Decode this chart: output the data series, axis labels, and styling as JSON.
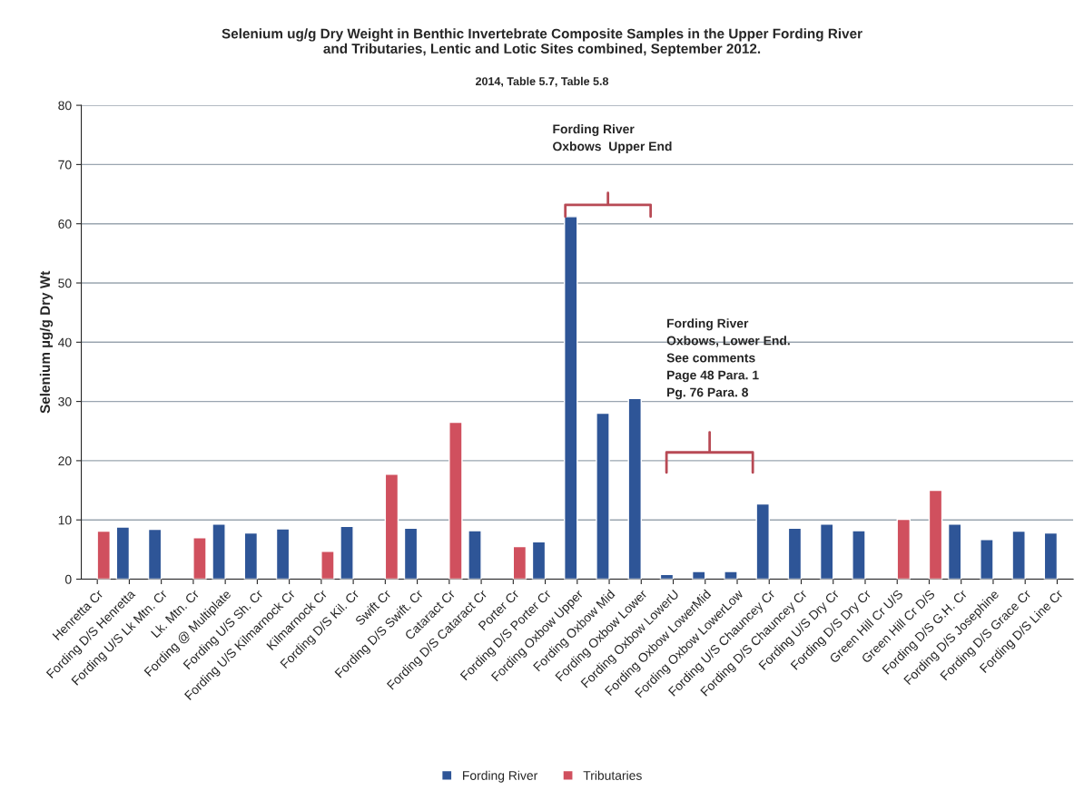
{
  "chart_data": {
    "type": "bar",
    "title": "Selenium ug/g Dry Weight in Benthic Invertebrate Composite Samples in the Upper Fording River\nand Tributaries, Lentic and Lotic Sites combined, September 2012.",
    "subtitle": "2014, Table 5.7, Table 5.8",
    "ylabel": "Selenium µg/g Dry Wt",
    "categories": [
      "Henretta Cr",
      "Fording D/S Henretta",
      "Fording U/S Lk Mtn. Cr",
      "Lk. Mtn. Cr",
      "Fording @ Multiplate",
      "Fording U/S Sh. Cr",
      "Fording U/S Kilmarnock Cr",
      "Kilmarnock Cr",
      "Fording D/S Kil. Cr",
      "Swift Cr",
      "Fording D/S Swift. Cr",
      "Cataract Cr",
      "Fording D/S Cataract Cr",
      "Porter Cr",
      "Fording D/S Porter Cr",
      "Fording Oxbow Upper",
      "Fording Oxbow Mid",
      "Fording Oxbow Lower",
      "Fording Oxbow LowerU",
      "Fording Oxbow LowerMid",
      "Fording Oxbow LowerLow",
      "Fording U/S Chauncey Cr",
      "Fording D/S Chauncey Cr",
      "Fording U/S Dry Cr",
      "Fording D/S Dry Cr",
      "Green Hill Cr U/S",
      "Green Hill Cr D/S",
      "Fording D/S G.H. Cr",
      "Fording D/S Josephine",
      "Fording D/S Grace Cr",
      "Fording D/S Line Cr"
    ],
    "series": [
      {
        "name": "Fording River",
        "color": "#2e5597",
        "values": [
          null,
          8.8,
          8.4,
          null,
          9.3,
          7.8,
          8.5,
          null,
          8.9,
          null,
          8.6,
          null,
          8.2,
          null,
          6.3,
          61.2,
          28.0,
          30.5,
          0.8,
          1.3,
          1.3,
          12.7,
          8.6,
          9.3,
          8.2,
          null,
          null,
          9.3,
          6.7,
          8.1,
          7.8
        ]
      },
      {
        "name": "Tributaries",
        "color": "#d0505e",
        "values": [
          8.1,
          null,
          null,
          7.0,
          null,
          null,
          null,
          4.7,
          null,
          17.7,
          null,
          26.5,
          null,
          5.5,
          null,
          null,
          null,
          null,
          null,
          null,
          null,
          null,
          null,
          null,
          null,
          10.1,
          15.0,
          null,
          null,
          null,
          null
        ]
      }
    ],
    "ylim": [
      0,
      80
    ],
    "yticks": [
      0,
      10,
      20,
      30,
      40,
      50,
      60,
      70,
      80
    ],
    "grid": "y",
    "legend": "bottom",
    "annotations": [
      "Fording River\nOxbows  Upper End",
      "Fording River\nOxbows, Lower End.\nSee comments\nPage 48 Para. 1\nPg. 76 Para. 8"
    ]
  }
}
